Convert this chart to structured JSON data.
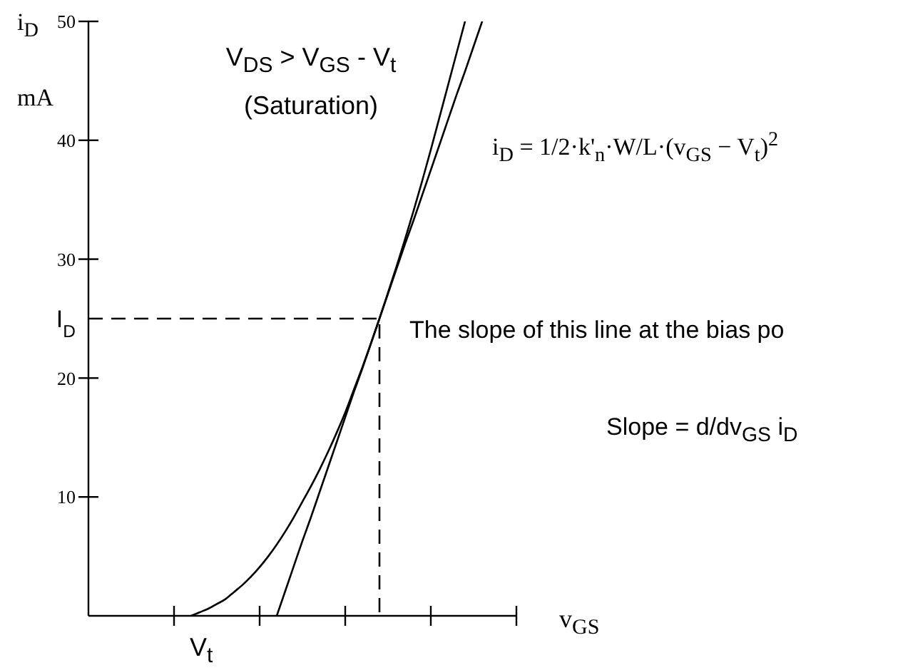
{
  "chart_data": {
    "type": "line",
    "ylabel": "i$_{D}$ mA",
    "xlabel": "v$_{GS}$",
    "annotations": [
      "V$_{DS}$ > V$_{GS}$ - V$_{t}$",
      "(Saturation)",
      "i$_{D}$ = 1/2·k'$_{n}$·W/L·(v$_{GS}$ − V$_{t}$)$^{2}$",
      "The slope of this line at the bias po",
      "Slope = d/dv$_{GS}$ i$_{D}$",
      "V$_{t}$"
    ],
    "categories": [
      null,
      null,
      null,
      null,
      null,
      null,
      null,
      null,
      null,
      null,
      null,
      null,
      null,
      null,
      null,
      null,
      null,
      null,
      null,
      null,
      null,
      null,
      null,
      null,
      null,
      null,
      null,
      null,
      null,
      null,
      null,
      null,
      null,
      null,
      null,
      null,
      null,
      null,
      null,
      null,
      null,
      null,
      null,
      null,
      null,
      null,
      null,
      null,
      null,
      null,
      null
    ],
    "ylim": [
      0,
      50
    ],
    "yticks": [
      10,
      20,
      {
        "value": 25,
        "label": "I$_{D}$"
      },
      30,
      40,
      50
    ],
    "series": [
      {
        "type": "line",
        "color": "#000000",
        "values": [
          null,
          null,
          null,
          null,
          null,
          null,
          null,
          null,
          null,
          null,
          null,
          null,
          0,
          0.3,
          0.6,
          1.0,
          1.4,
          2.0,
          2.6,
          3.3,
          4.1,
          5.0,
          6.0,
          7.1,
          8.3,
          9.6,
          10.9,
          12.3,
          13.8,
          15.4,
          17.1,
          19.0,
          20.9,
          22.9,
          25.0,
          27.2,
          29.4,
          31.7,
          34.1,
          36.6,
          39.2,
          41.9,
          44.6,
          47.3,
          50.0,
          null,
          null,
          null,
          null,
          null,
          null
        ]
      },
      {
        "type": "line",
        "color": "#000000",
        "values": [
          null,
          null,
          null,
          null,
          null,
          null,
          null,
          null,
          null,
          null,
          null,
          null,
          null,
          null,
          null,
          null,
          null,
          null,
          null,
          null,
          null,
          null,
          0,
          2.1,
          4.2,
          6.3,
          8.3,
          10.4,
          12.5,
          14.6,
          16.7,
          18.8,
          20.8,
          22.9,
          25.0,
          27.1,
          29.2,
          31.3,
          33.3,
          35.4,
          37.5,
          39.6,
          41.7,
          43.8,
          45.8,
          47.9,
          50.0,
          null,
          null,
          null,
          null
        ]
      },
      {
        "type": "step",
        "color": "#000000",
        "line_style": "dashed",
        "values": [
          25,
          25,
          25,
          25,
          25,
          25,
          25,
          25,
          25,
          25,
          25,
          25,
          25,
          25,
          25,
          25,
          25,
          25,
          25,
          25,
          25,
          25,
          25,
          25,
          25,
          25,
          25,
          25,
          25,
          25,
          25,
          25,
          25,
          25,
          0,
          null,
          null,
          null,
          null,
          null,
          null,
          null,
          null,
          null,
          null,
          null,
          null,
          null,
          null,
          null,
          null
        ]
      }
    ]
  }
}
